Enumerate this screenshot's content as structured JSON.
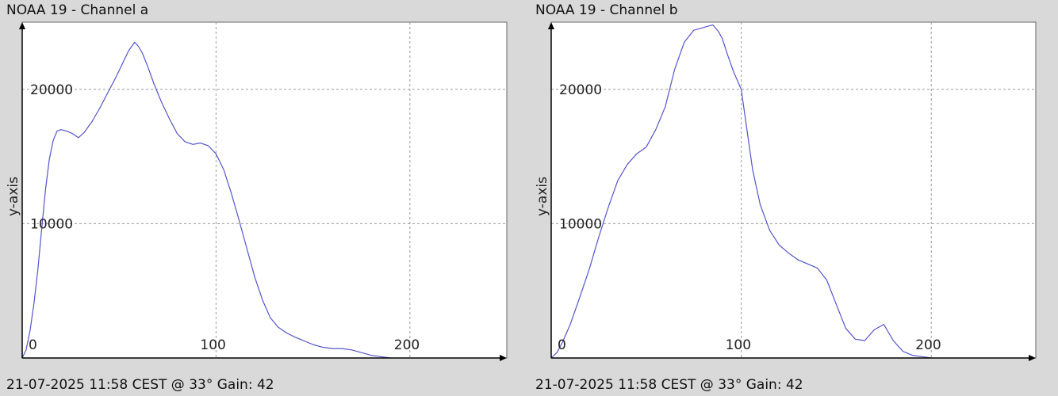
{
  "chart_data": [
    {
      "type": "line",
      "title": "NOAA 19 - Channel a",
      "footer": "21-07-2025 11:58 CEST @ 33° Gain: 42",
      "ylabel": "y-axis",
      "xlabel": "",
      "xlim": [
        0,
        250
      ],
      "ylim": [
        0,
        25000
      ],
      "xticks": [
        0,
        100,
        200
      ],
      "yticks": [
        10000,
        20000
      ],
      "xtick_labels": [
        "0",
        "100",
        "200"
      ],
      "ytick_labels": [
        "10000",
        "20000"
      ],
      "grid": true,
      "line_color": "#5555cc",
      "series": [
        {
          "x": [
            0,
            2,
            4,
            6,
            8,
            10,
            12,
            14,
            16,
            18,
            20,
            23,
            26,
            29,
            32,
            36,
            40,
            44,
            48,
            52,
            55,
            58,
            60,
            62,
            65,
            68,
            72,
            76,
            80,
            84,
            88,
            92,
            96,
            100,
            104,
            108,
            112,
            116,
            120,
            124,
            128,
            132,
            136,
            140,
            145,
            150,
            155,
            160,
            165,
            170,
            175,
            180,
            185,
            190
          ],
          "y": [
            0,
            600,
            2000,
            4000,
            6500,
            9500,
            12500,
            14800,
            16200,
            16900,
            17000,
            16900,
            16700,
            16400,
            16800,
            17600,
            18600,
            19700,
            20800,
            22000,
            22900,
            23500,
            23200,
            22700,
            21600,
            20400,
            19000,
            17800,
            16700,
            16100,
            15900,
            16000,
            15800,
            15200,
            14000,
            12200,
            10200,
            8100,
            6000,
            4300,
            3000,
            2300,
            1900,
            1600,
            1300,
            1000,
            800,
            700,
            700,
            600,
            400,
            200,
            100,
            0
          ]
        }
      ]
    },
    {
      "type": "line",
      "title": "NOAA 19 - Channel b",
      "footer": "21-07-2025 11:58 CEST @ 33° Gain: 42",
      "ylabel": "y-axis",
      "xlabel": "",
      "xlim": [
        0,
        255
      ],
      "ylim": [
        0,
        25000
      ],
      "xticks": [
        0,
        100,
        200
      ],
      "yticks": [
        10000,
        20000
      ],
      "xtick_labels": [
        "0",
        "100",
        "200"
      ],
      "ytick_labels": [
        "10000",
        "20000"
      ],
      "grid": true,
      "line_color": "#5555cc",
      "series": [
        {
          "x": [
            0,
            3,
            6,
            10,
            15,
            20,
            25,
            30,
            35,
            40,
            45,
            50,
            55,
            60,
            65,
            70,
            75,
            80,
            85,
            88,
            90,
            93,
            96,
            100,
            103,
            106,
            110,
            115,
            120,
            125,
            130,
            135,
            140,
            145,
            150,
            155,
            160,
            165,
            170,
            175,
            180,
            185,
            190,
            195,
            200
          ],
          "y": [
            0,
            400,
            1200,
            2500,
            4500,
            6600,
            9000,
            11200,
            13200,
            14400,
            15200,
            15700,
            17000,
            18700,
            21500,
            23500,
            24400,
            24600,
            24800,
            24300,
            23800,
            22500,
            21300,
            20000,
            17000,
            14000,
            11400,
            9500,
            8400,
            7800,
            7300,
            7000,
            6700,
            5800,
            4000,
            2200,
            1400,
            1300,
            2100,
            2500,
            1300,
            500,
            200,
            100,
            0
          ]
        }
      ]
    }
  ]
}
